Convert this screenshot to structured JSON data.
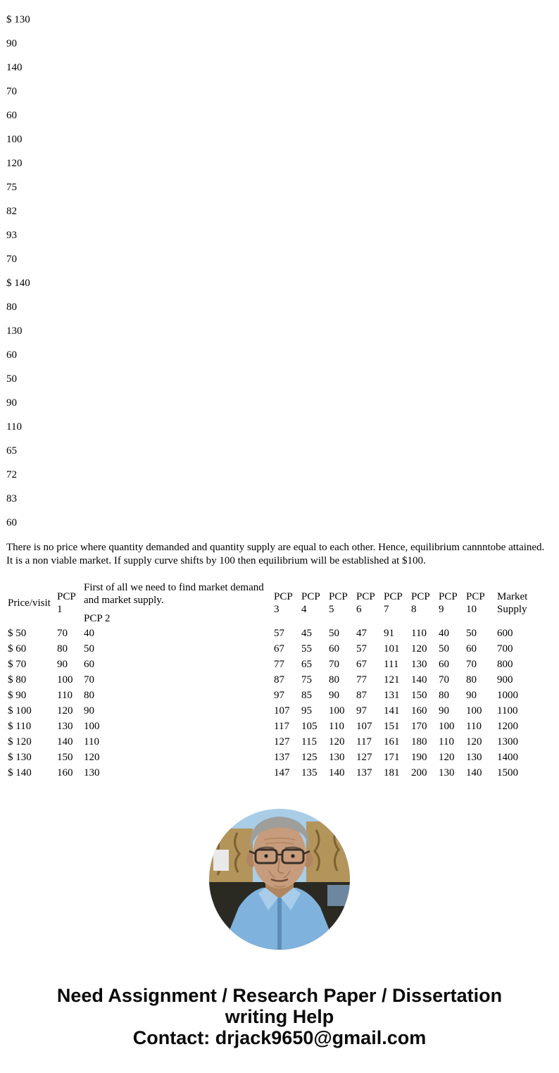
{
  "top_list": [
    "$ 130",
    "90",
    "140",
    "70",
    "60",
    "100",
    "120",
    "75",
    "82",
    "93",
    "70",
    "$ 140",
    "80",
    "130",
    "60",
    "50",
    "90",
    "110",
    "65",
    "72",
    "83",
    "60"
  ],
  "paragraph": "There is no price where quantity demanded and quantity supply are equal to each other. Hence, equilibrium cannntobe attained. It is a non viable market. If supply curve shifts by 100 then equilibrium will be established at $100.",
  "table": {
    "note": "First of all we need to find market demand and market supply.",
    "headers": [
      "Price/visit",
      "PCP 1",
      "PCP 2",
      "PCP 3",
      "PCP 4",
      "PCP 5",
      "PCP 6",
      "PCP 7",
      "PCP 8",
      "PCP 9",
      "PCP 10",
      "Market Supply"
    ],
    "rows": [
      [
        "$ 50",
        "70",
        "40",
        "57",
        "45",
        "50",
        "47",
        "91",
        "110",
        "40",
        "50",
        "600"
      ],
      [
        "$ 60",
        "80",
        "50",
        "67",
        "55",
        "60",
        "57",
        "101",
        "120",
        "50",
        "60",
        "700"
      ],
      [
        "$ 70",
        "90",
        "60",
        "77",
        "65",
        "70",
        "67",
        "111",
        "130",
        "60",
        "70",
        "800"
      ],
      [
        "$ 80",
        "100",
        "70",
        "87",
        "75",
        "80",
        "77",
        "121",
        "140",
        "70",
        "80",
        "900"
      ],
      [
        "$ 90",
        "110",
        "80",
        "97",
        "85",
        "90",
        "87",
        "131",
        "150",
        "80",
        "90",
        "1000"
      ],
      [
        "$ 100",
        "120",
        "90",
        "107",
        "95",
        "100",
        "97",
        "141",
        "160",
        "90",
        "100",
        "1100"
      ],
      [
        "$ 110",
        "130",
        "100",
        "117",
        "105",
        "110",
        "107",
        "151",
        "170",
        "100",
        "110",
        "1200"
      ],
      [
        "$ 120",
        "140",
        "110",
        "127",
        "115",
        "120",
        "117",
        "161",
        "180",
        "110",
        "120",
        "1300"
      ],
      [
        "$ 130",
        "150",
        "120",
        "137",
        "125",
        "130",
        "127",
        "171",
        "190",
        "120",
        "130",
        "1400"
      ],
      [
        "$ 140",
        "160",
        "130",
        "147",
        "135",
        "140",
        "137",
        "181",
        "200",
        "130",
        "140",
        "1500"
      ]
    ]
  },
  "photo": {
    "alt": "instructor-portrait",
    "colors": {
      "sky": "#a9cde7",
      "wall_gold": "#b3945a",
      "wall_shadow": "#7d6230",
      "furniture_dark": "#2b2a22",
      "shirt_blue": "#7fb3de",
      "collar_light": "#a8cce9",
      "skin": "#c79c7c",
      "skin_shadow": "#b0855f",
      "hair_gray": "#9e9e9a",
      "glasses_dark": "#3a2f28"
    }
  },
  "footer": {
    "line1": "Need Assignment / Research Paper / Dissertation",
    "line2": "writing Help",
    "line3": "Contact: drjack9650@gmail.com"
  }
}
